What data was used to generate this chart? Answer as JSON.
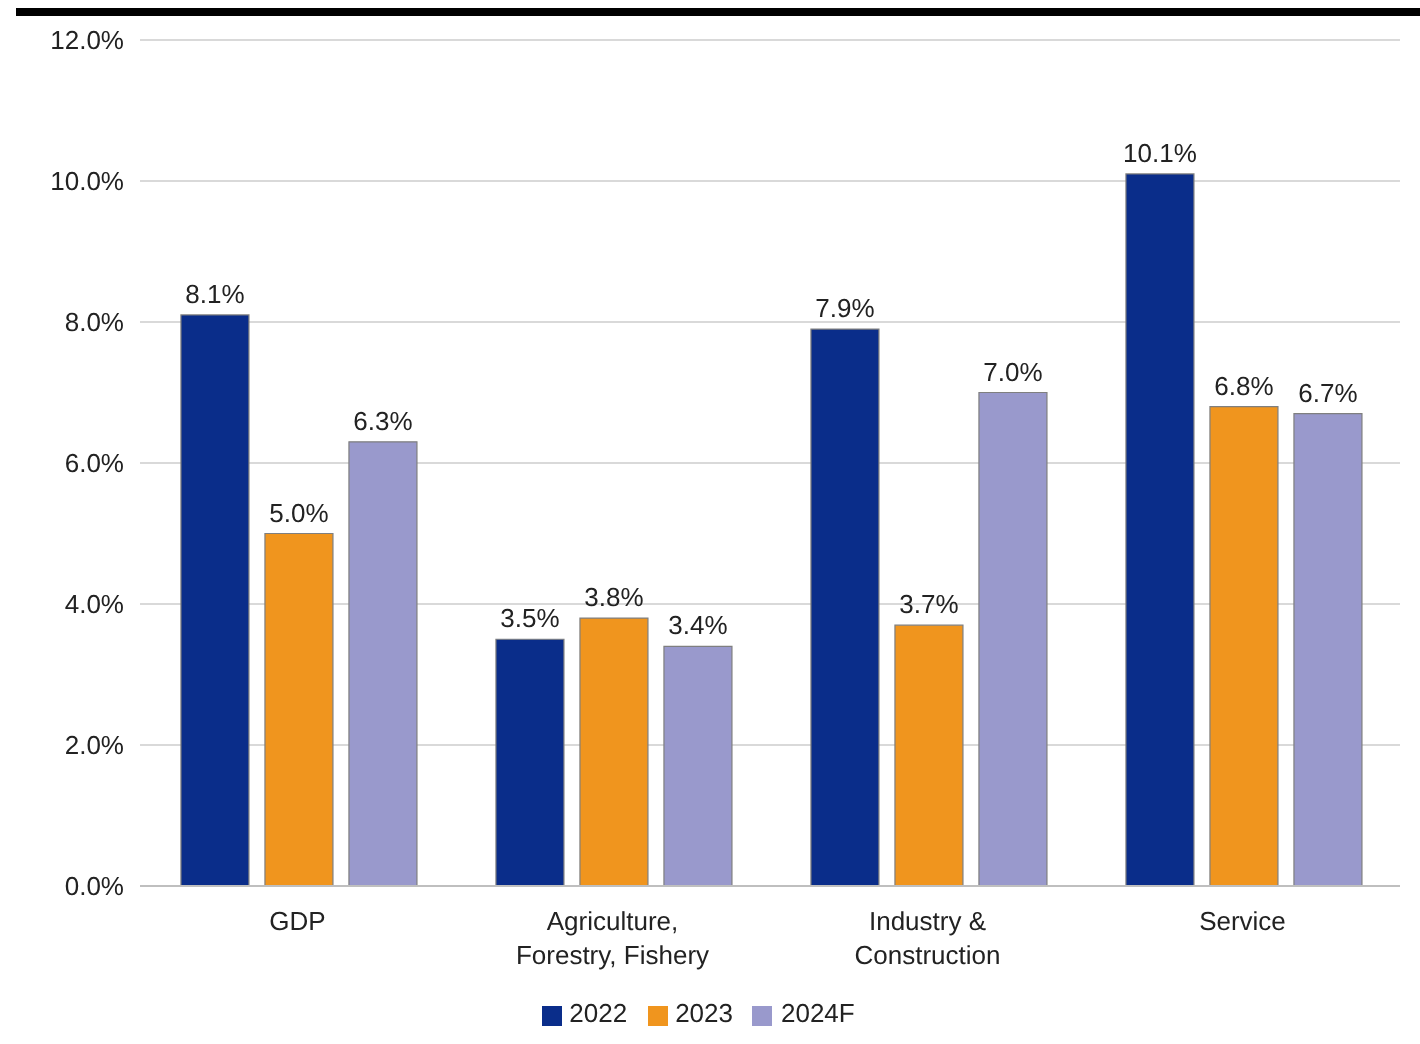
{
  "chart_data": {
    "type": "bar",
    "categories": [
      "GDP",
      "Agriculture, Forestry, Fishery",
      "Industry & Construction",
      "Service"
    ],
    "series": [
      {
        "name": "2022",
        "color": "#0a2d8a",
        "values": [
          8.1,
          3.5,
          7.9,
          10.1
        ],
        "value_labels": [
          "8.1%",
          "3.5%",
          "7.9%",
          "10.1%"
        ]
      },
      {
        "name": "2023",
        "color": "#f0951e",
        "values": [
          5.0,
          3.8,
          3.7,
          6.8
        ],
        "value_labels": [
          "5.0%",
          "3.8%",
          "3.7%",
          "6.8%"
        ]
      },
      {
        "name": "2024F",
        "color": "#9999cc",
        "values": [
          6.3,
          3.4,
          7.0,
          6.7
        ],
        "value_labels": [
          "6.3%",
          "3.4%",
          "7.0%",
          "6.7%"
        ]
      }
    ],
    "ylim": [
      0,
      12
    ],
    "yticks": [
      {
        "value": 0,
        "label": "0.0%"
      },
      {
        "value": 2,
        "label": "2.0%"
      },
      {
        "value": 4,
        "label": "4.0%"
      },
      {
        "value": 6,
        "label": "6.0%"
      },
      {
        "value": 8,
        "label": "8.0%"
      },
      {
        "value": 10,
        "label": "10.0%"
      },
      {
        "value": 12,
        "label": "12.0%"
      }
    ],
    "grid": "y",
    "legend": "bottom"
  }
}
